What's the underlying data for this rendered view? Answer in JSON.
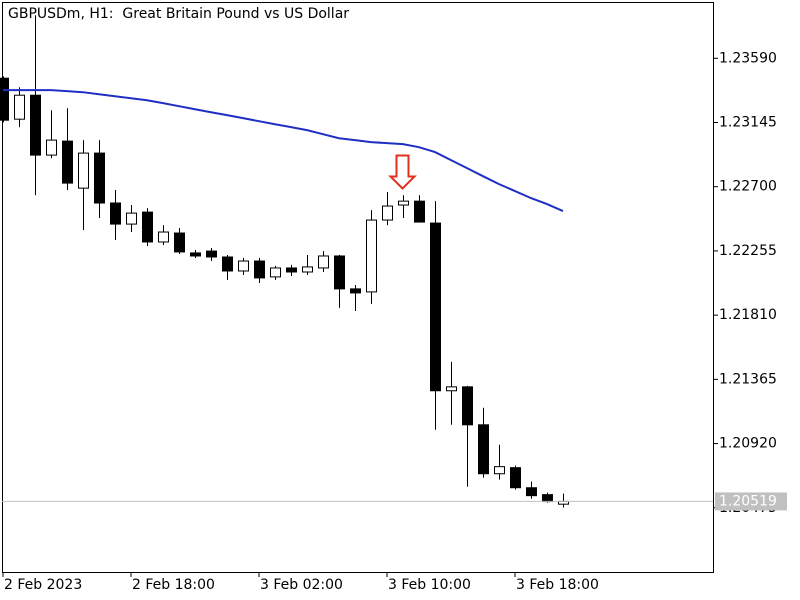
{
  "chart_data": {
    "type": "candlestick",
    "title": "GBPUSDm, H1:  Great Britain Pound vs US Dollar",
    "categories": [
      "2 Feb 2023",
      null,
      null,
      null,
      null,
      null,
      null,
      null,
      "2 Feb 18:00",
      null,
      null,
      null,
      null,
      null,
      null,
      null,
      "3 Feb 02:00",
      null,
      null,
      null,
      null,
      null,
      null,
      null,
      "3 Feb 10:00",
      null,
      null,
      null,
      null,
      null,
      null,
      null,
      "3 Feb 18:00",
      null,
      null,
      null
    ],
    "open": [
      1.23452,
      1.23168,
      1.23334,
      1.22919,
      1.23016,
      1.2269,
      1.22933,
      1.22587,
      1.22441,
      1.22524,
      1.22317,
      1.22379,
      1.22241,
      1.22254,
      1.22213,
      1.22116,
      1.22185,
      1.22075,
      1.22137,
      1.22109,
      1.22137,
      1.2222,
      1.21992,
      1.21971,
      1.22469,
      1.22573,
      1.226,
      1.22448,
      1.21286,
      1.21313,
      1.2105,
      1.20711,
      1.20753,
      1.20614,
      1.20566,
      1.205
    ],
    "high": [
      1.23465,
      1.23389,
      1.23888,
      1.2323,
      1.23244,
      1.23023,
      1.23023,
      1.22677,
      1.22573,
      1.22552,
      1.22434,
      1.22414,
      1.22261,
      1.22275,
      1.22227,
      1.22206,
      1.22206,
      1.22151,
      1.22158,
      1.22227,
      1.22254,
      1.22227,
      1.22019,
      1.22538,
      1.22663,
      1.22642,
      1.22642,
      1.226,
      1.21486,
      1.2132,
      1.21168,
      1.20912,
      1.20767,
      1.20656,
      1.2058,
      1.20573
    ],
    "low": [
      1.23147,
      1.23113,
      1.22642,
      1.22898,
      1.22677,
      1.224,
      1.22483,
      1.22331,
      1.22386,
      1.22289,
      1.22296,
      1.22234,
      1.22206,
      1.22185,
      1.22054,
      1.22088,
      1.22033,
      1.22054,
      1.22081,
      1.22088,
      1.22109,
      1.2186,
      1.21839,
      1.21888,
      1.22434,
      1.22483,
      1.22455,
      1.21016,
      1.2105,
      1.20621,
      1.20684,
      1.2067,
      1.20601,
      1.20538,
      1.20511,
      1.20476
    ],
    "close": [
      1.23161,
      1.23334,
      1.22919,
      1.23023,
      1.22725,
      1.22933,
      1.22587,
      1.22441,
      1.22517,
      1.22317,
      1.22386,
      1.22248,
      1.2222,
      1.22213,
      1.22116,
      1.22185,
      1.22068,
      1.22137,
      1.22109,
      1.22144,
      1.2222,
      1.21992,
      1.21964,
      1.22469,
      1.22566,
      1.226,
      1.22455,
      1.21286,
      1.21313,
      1.2105,
      1.20711,
      1.2076,
      1.20614,
      1.20559,
      1.20518,
      1.20519
    ],
    "up_color": "#ffffff",
    "down_color": "#000000",
    "line": {
      "color": "#1f2fc4",
      "values": [
        1.23369,
        1.23369,
        1.23369,
        1.23369,
        1.23362,
        1.23355,
        1.23341,
        1.23327,
        1.23313,
        1.23299,
        1.23279,
        1.23258,
        1.23237,
        1.23216,
        1.23196,
        1.23175,
        1.23154,
        1.23133,
        1.23113,
        1.23092,
        1.23064,
        1.23036,
        1.23023,
        1.23009,
        1.23002,
        1.22995,
        1.22974,
        1.2294,
        1.22884,
        1.22829,
        1.22773,
        1.22718,
        1.2267,
        1.22621,
        1.2258,
        1.22531
      ]
    },
    "last_price": 1.20519,
    "ylim": [
      1.2003,
      1.2398
    ],
    "yticks": [
      {
        "value": 1.2359,
        "label": "1.23590"
      },
      {
        "value": 1.23145,
        "label": "1.23145"
      },
      {
        "value": 1.227,
        "label": "1.22700"
      },
      {
        "value": 1.22255,
        "label": "1.22255"
      },
      {
        "value": 1.2181,
        "label": "1.21810"
      },
      {
        "value": 1.21365,
        "label": "1.21365"
      },
      {
        "value": 1.2092,
        "label": "1.20920"
      },
      {
        "value": 1.20475,
        "label": "1.20475"
      }
    ],
    "grid": false
  }
}
